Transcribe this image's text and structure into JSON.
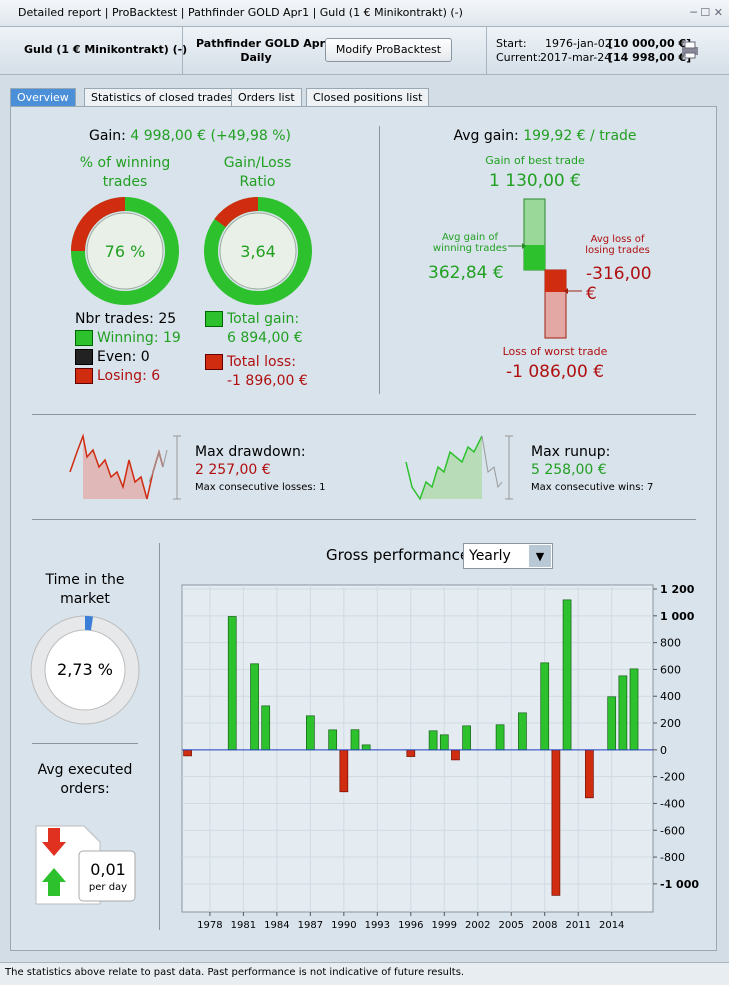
{
  "title_bar": {
    "items": [
      "Detailed report",
      "ProBacktest",
      "Pathfinder GOLD Apr1",
      "Guld (1 € Minikontrakt) (-)"
    ]
  },
  "header": {
    "instrument": "Guld (1 € Minikontrakt) (-)",
    "system": "Pathfinder GOLD Apr1",
    "period": "Daily",
    "button": "Modify ProBacktest",
    "start_label": "Start:",
    "start_date": "1976-jan-02",
    "start_value": "[10 000,00 €]",
    "current_label": "Current:",
    "current_date": "2017-mar-24",
    "current_value": "[14 998,00 €]"
  },
  "tabs": [
    "Overview",
    "Statistics of closed trades",
    "Orders list",
    "Closed positions list"
  ],
  "overview": {
    "gain_label": "Gain:",
    "gain_value": "4 998,00 € (+49,98 %)",
    "winning_title": "% of winning trades",
    "winning_pct": "76 %",
    "ratio_title": "Gain/Loss Ratio",
    "ratio": "3,64",
    "nbr_trades": "Nbr trades: 25",
    "winning": "Winning: 19",
    "even": "Even: 0",
    "losing": "Losing: 6",
    "total_gain_label": "Total gain:",
    "total_gain": "6 894,00 €",
    "total_loss_label": "Total loss:",
    "total_loss": "-1 896,00 €"
  },
  "average": {
    "avg_gain_label": "Avg gain:",
    "avg_gain_value": "199,92 € / trade",
    "best_label": "Gain of best trade",
    "best": "1 130,00 €",
    "avg_win_label": "Avg gain of winning trades",
    "avg_win": "362,84 €",
    "avg_loss_label": "Avg loss of losing trades",
    "avg_loss": "-316,00 €",
    "worst_label": "Loss of worst trade",
    "worst": "-1 086,00 €"
  },
  "drawdown": {
    "label": "Max drawdown:",
    "value": "2 257,00 €",
    "sub": "Max consecutive losses: 1"
  },
  "runup": {
    "label": "Max runup:",
    "value": "5 258,00 €",
    "sub": "Max consecutive wins: 7"
  },
  "time_in_market": {
    "label": "Time in the market",
    "value": "2,73 %"
  },
  "orders": {
    "label": "Avg executed orders:",
    "value": "0,01",
    "unit": "per day"
  },
  "chart_data": {
    "type": "bar",
    "title": "Gross performance",
    "period": "Yearly",
    "x": [
      1976,
      1980,
      1982,
      1983,
      1987,
      1989,
      1990,
      1991,
      1992,
      1996,
      1998,
      1999,
      2000,
      2001,
      2004,
      2006,
      2008,
      2009,
      2010,
      2012,
      2014,
      2015,
      2016
    ],
    "values": [
      -45,
      995,
      642,
      328,
      254,
      149,
      -313,
      150,
      37,
      -50,
      142,
      112,
      -75,
      179,
      187,
      276,
      649,
      -1086,
      1119,
      -358,
      396,
      552,
      604
    ],
    "pos_color": "#2ec12e",
    "neg_color": "#d02c10",
    "zero_color": "#2040c0",
    "xlim": [
      1975.5,
      2017.7
    ],
    "xticks": [
      1978,
      1981,
      1984,
      1987,
      1990,
      1993,
      1996,
      1999,
      2002,
      2005,
      2008,
      2011,
      2014
    ],
    "ylim": [
      -1210,
      1230
    ],
    "yticks": [
      {
        "value": 1200,
        "label": "1 200"
      },
      {
        "value": 1000,
        "label": "1 000"
      },
      800,
      600,
      400,
      200,
      0,
      -200,
      -400,
      -600,
      -800,
      {
        "value": -1000,
        "label": "-1 000"
      }
    ],
    "grid": true
  },
  "footer": "The statistics above relate to past data. Past performance is not indicative of future results."
}
